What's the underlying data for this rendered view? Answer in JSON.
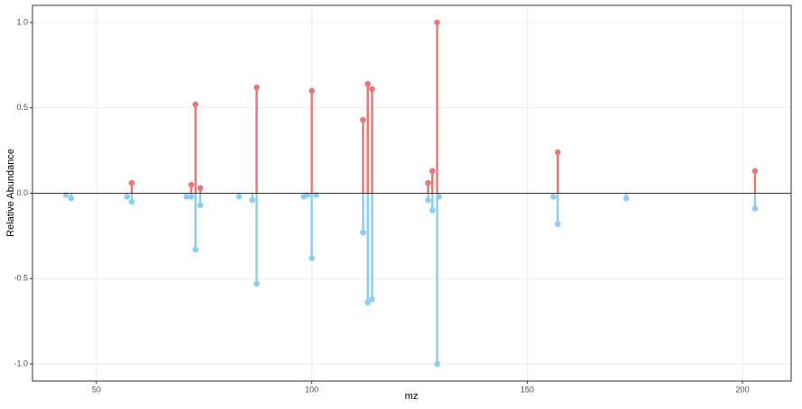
{
  "chart_data": {
    "type": "stem",
    "xlabel": "mz",
    "ylabel": "Relative Abundance",
    "series": [
      {
        "color": "#e8797a",
        "x": [
          58.2,
          72.0,
          73.0,
          74.1,
          87.2,
          100.0,
          111.9,
          113.0,
          114.0,
          127.0,
          128.0,
          129.1,
          157.1,
          202.9
        ],
        "values": [
          0.06,
          0.05,
          0.52,
          0.03,
          0.62,
          0.6,
          0.43,
          0.64,
          0.61,
          0.06,
          0.13,
          1.0,
          0.24,
          0.13
        ]
      },
      {
        "color": "#8ccdf0",
        "x": [
          42.9,
          44.1,
          57.1,
          58.2,
          70.9,
          72.0,
          73.0,
          74.1,
          83.1,
          86.2,
          87.2,
          98.1,
          99.0,
          100.0,
          101.0,
          111.9,
          113.0,
          114.0,
          127.0,
          128.0,
          129.1,
          129.5,
          156.1,
          157.1,
          173.0,
          202.9
        ],
        "values": [
          -0.01,
          -0.03,
          -0.02,
          -0.05,
          -0.02,
          -0.02,
          -0.33,
          -0.07,
          -0.02,
          -0.04,
          -0.53,
          -0.02,
          -0.01,
          -0.38,
          -0.01,
          -0.23,
          -0.64,
          -0.62,
          -0.04,
          -0.1,
          -1.0,
          -0.02,
          -0.02,
          -0.18,
          -0.03,
          -0.09
        ]
      }
    ],
    "xlim": [
      35.15,
      211.3
    ],
    "ylim": [
      -1.1,
      1.1
    ],
    "xticks": [
      50,
      100,
      150,
      200
    ],
    "yticks": [
      {
        "value": 1,
        "label": "1.0"
      },
      {
        "value": 0.5,
        "label": "0.5"
      },
      {
        "value": 0,
        "label": "0.0"
      },
      {
        "value": -0.5,
        "label": "-0.5"
      },
      {
        "value": -1,
        "label": "-1.0"
      }
    ],
    "grid": true,
    "zero_line": true
  }
}
